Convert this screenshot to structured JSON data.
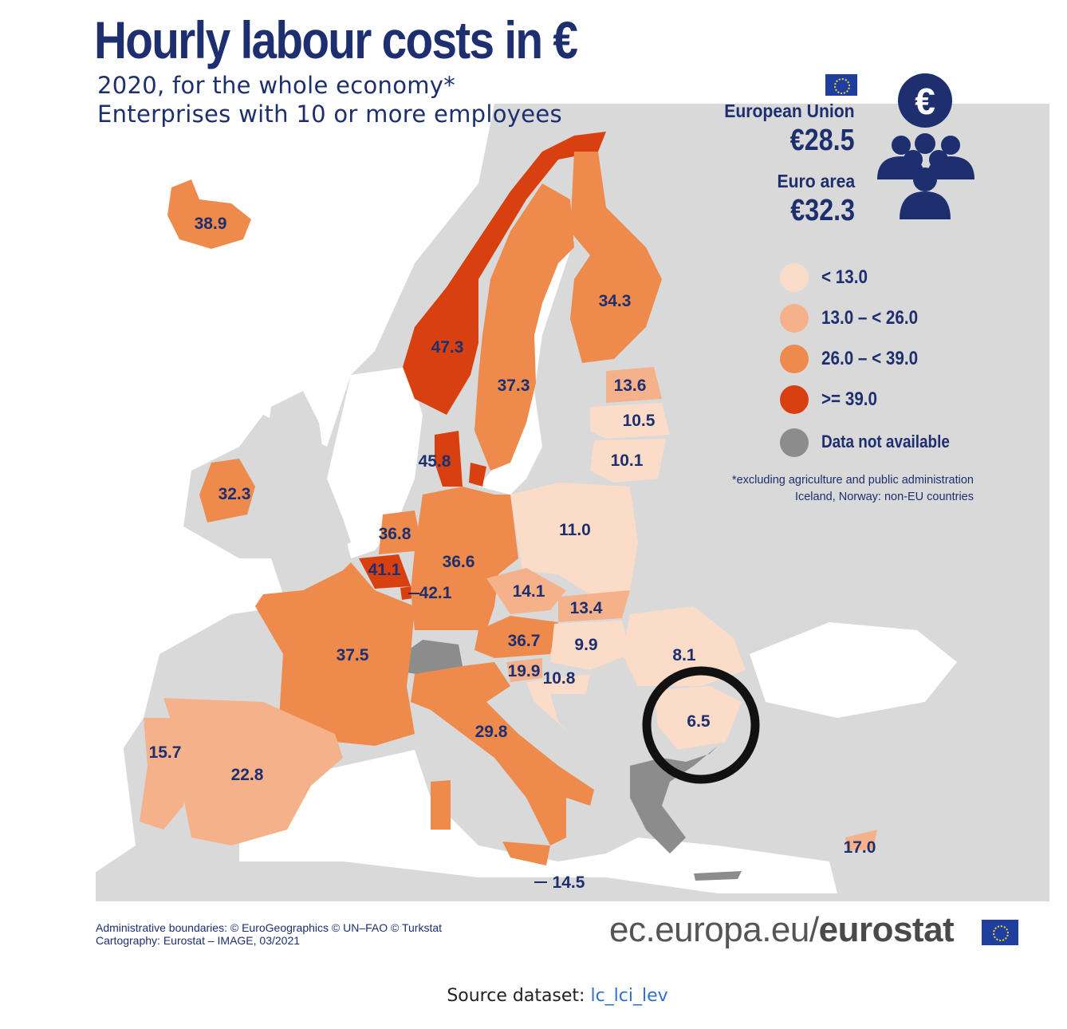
{
  "title": "Hourly labour costs in €",
  "subtitle_line1": "2020, for the whole economy*",
  "subtitle_line2": "Enterprises with 10 or more employees",
  "headline": {
    "eu_label": "European Union",
    "eu_value": "€28.5",
    "ea_label": "Euro area",
    "ea_value": "€32.3"
  },
  "legend": [
    {
      "label": "< 13.0",
      "color": "#fbdcc8"
    },
    {
      "label": "13.0 – < 26.0",
      "color": "#f5b18a"
    },
    {
      "label": "26.0 – < 39.0",
      "color": "#ee8a4c"
    },
    {
      "label": ">= 39.0",
      "color": "#d8400f"
    },
    {
      "label": "Data not available",
      "color": "#8c8c8c"
    }
  ],
  "footnote_line1": "*excluding agriculture and public administration",
  "footnote_line2": "Iceland, Norway: non-EU countries",
  "credits_line1": "Administrative boundaries: © EuroGeographics © UN–FAO © Turkstat",
  "credits_line2": "Cartography: Eurostat – IMAGE, 03/2021",
  "brand_prefix": "ec.europa.eu/",
  "brand_bold": "eurostat",
  "source_label": "Source dataset:",
  "source_link": "lc_lci_lev",
  "map_labels": {
    "iceland": "38.9",
    "norway": "47.3",
    "sweden": "37.3",
    "finland": "34.3",
    "estonia": "13.6",
    "latvia": "10.5",
    "lithuania": "10.1",
    "denmark": "45.8",
    "ireland": "32.3",
    "netherlands": "36.8",
    "belgium": "41.1",
    "luxembourg": "42.1",
    "germany": "36.6",
    "poland": "11.0",
    "czechia": "14.1",
    "slovakia": "13.4",
    "austria": "36.7",
    "hungary": "9.9",
    "romania": "8.1",
    "bulgaria": "6.5",
    "slovenia": "19.9",
    "croatia": "10.8",
    "france": "37.5",
    "italy": "29.8",
    "spain": "22.8",
    "portugal": "15.7",
    "malta": "14.5",
    "cyprus": "17.0"
  },
  "colors": {
    "title": "#1d2f6f",
    "background_land": "#d9d9d9",
    "sea": "#ffffff",
    "highlight_circle": "#111111"
  }
}
